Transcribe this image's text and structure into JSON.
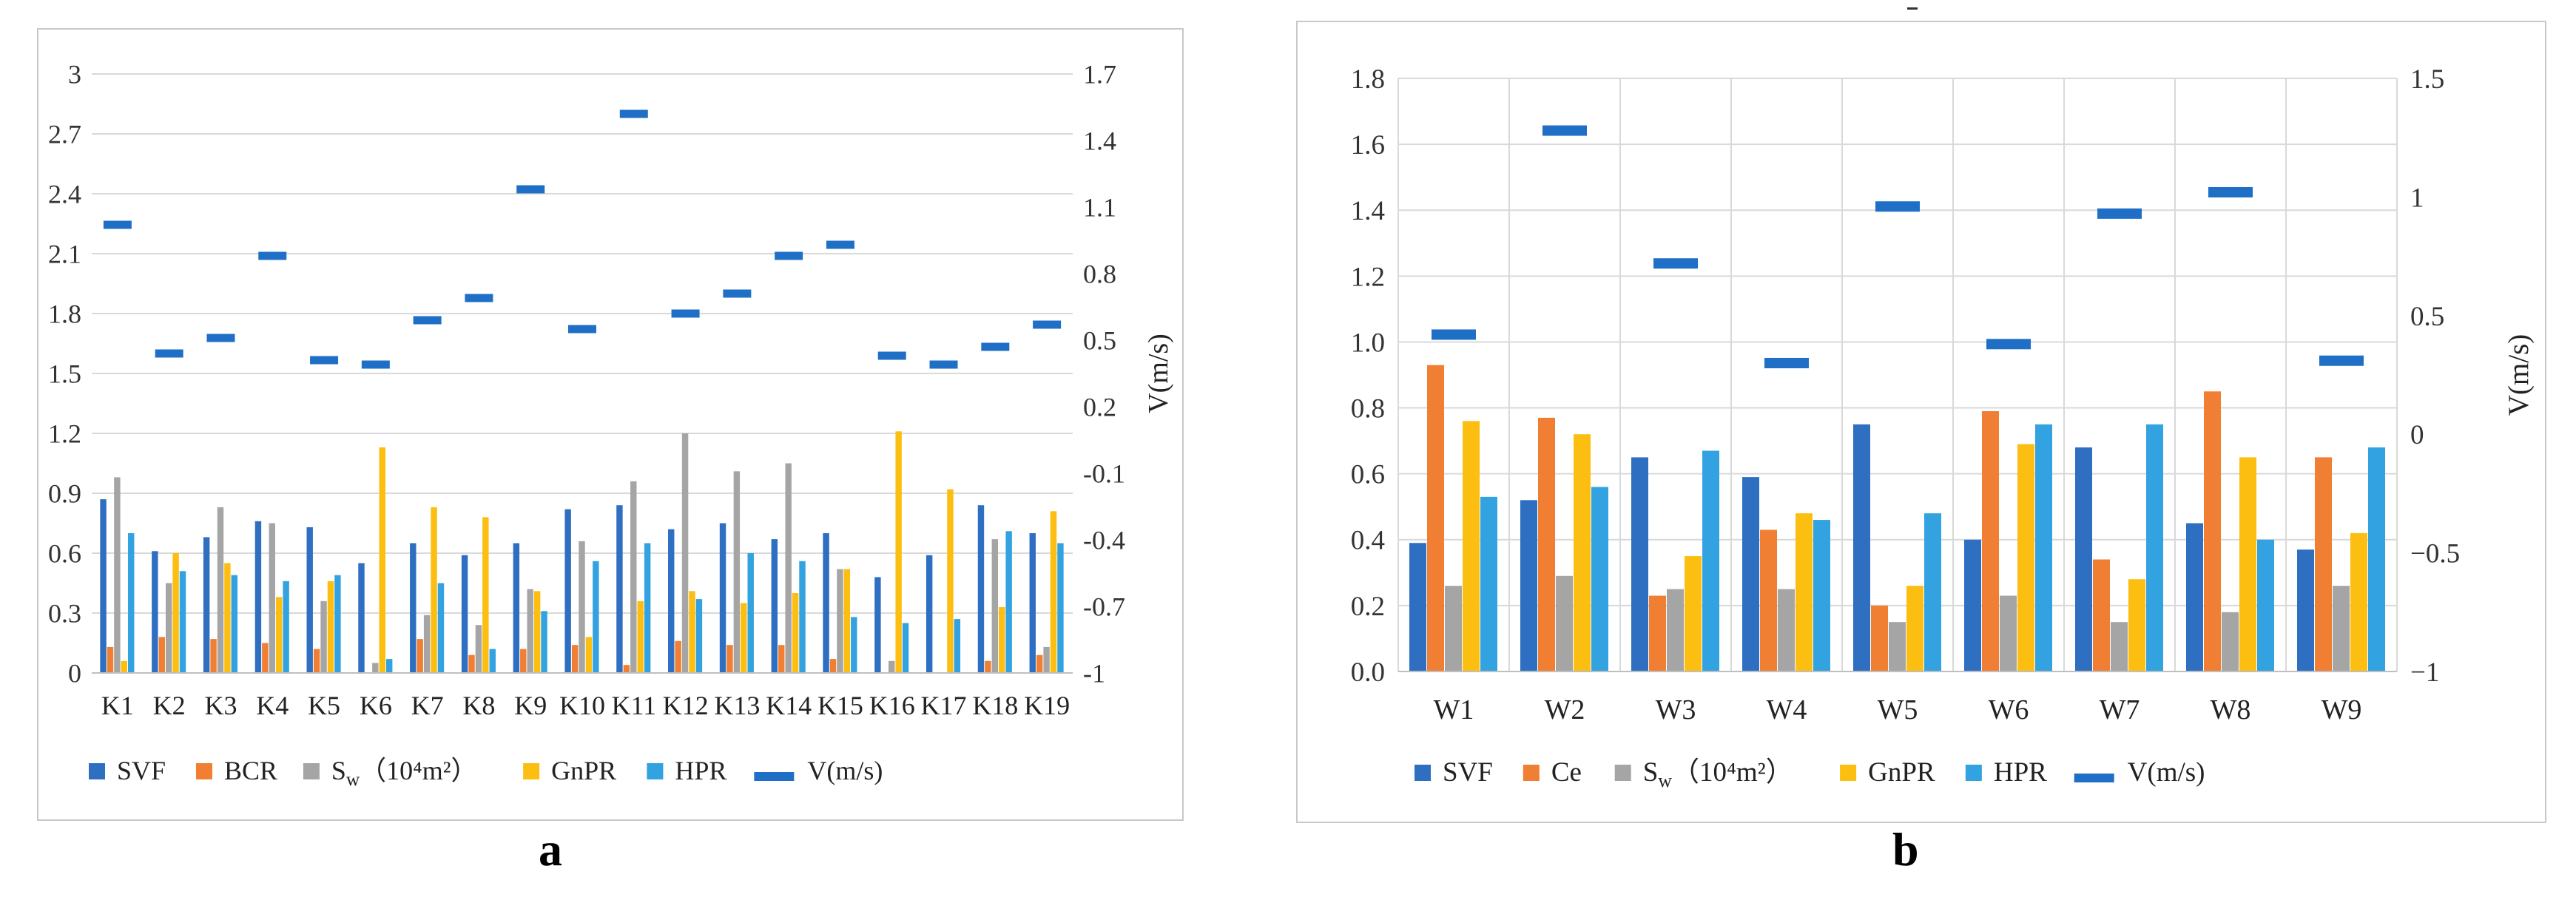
{
  "chart_data": [
    {
      "type": "bar",
      "panel_label": "a",
      "categories": [
        "K1",
        "K2",
        "K3",
        "K4",
        "K5",
        "K6",
        "K7",
        "K8",
        "K9",
        "K10",
        "K11",
        "K12",
        "K13",
        "K14",
        "K15",
        "K16",
        "K17",
        "K18",
        "K19"
      ],
      "y_ticks": [
        "0",
        "0.3",
        "0.6",
        "0.9",
        "1.2",
        "1.5",
        "1.8",
        "2.1",
        "2.4",
        "2.7",
        "3"
      ],
      "y2_ticks": [
        "-1",
        "-0.7",
        "-0.4",
        "-0.1",
        "0.2",
        "0.5",
        "0.8",
        "1.1",
        "1.4",
        "1.7"
      ],
      "ylim": [
        0,
        3
      ],
      "y2lim": [
        -1,
        1.7
      ],
      "y2label": "V(m/s)",
      "series": [
        {
          "name": "SVF",
          "color": "#2e6fc2",
          "values": [
            0.87,
            0.61,
            0.68,
            0.76,
            0.73,
            0.55,
            0.65,
            0.59,
            0.65,
            0.82,
            0.84,
            0.72,
            0.75,
            0.67,
            0.7,
            0.48,
            0.59,
            0.84,
            0.7
          ]
        },
        {
          "name": "BCR",
          "color": "#f07f33",
          "values": [
            0.13,
            0.18,
            0.17,
            0.15,
            0.12,
            0.0,
            0.17,
            0.09,
            0.12,
            0.14,
            0.04,
            0.16,
            0.14,
            0.14,
            0.07,
            0.0,
            0.0,
            0.06,
            0.09
          ]
        },
        {
          "name": "Sw(10⁴m²)",
          "color": "#a5a5a5",
          "values": [
            0.98,
            0.45,
            0.83,
            0.75,
            0.36,
            0.05,
            0.29,
            0.24,
            0.42,
            0.66,
            0.96,
            1.2,
            1.01,
            1.05,
            0.52,
            0.06,
            0.0,
            0.67,
            0.13
          ]
        },
        {
          "name": "GnPR",
          "color": "#fcbe10",
          "values": [
            0.06,
            0.6,
            0.55,
            0.38,
            0.46,
            1.13,
            0.83,
            0.78,
            0.41,
            0.18,
            0.36,
            0.41,
            0.35,
            0.4,
            0.52,
            1.21,
            0.92,
            0.33,
            0.81
          ]
        },
        {
          "name": "HPR",
          "color": "#33a2e0",
          "values": [
            0.7,
            0.51,
            0.49,
            0.46,
            0.49,
            0.07,
            0.45,
            0.12,
            0.31,
            0.56,
            0.65,
            0.37,
            0.6,
            0.56,
            0.28,
            0.25,
            0.27,
            0.71,
            0.65
          ]
        }
      ],
      "line_series": {
        "name": "V(m/s)",
        "color": "#1f6fc6",
        "values": [
          1.02,
          0.44,
          0.51,
          0.88,
          0.41,
          0.39,
          0.59,
          0.69,
          1.18,
          0.55,
          1.52,
          0.62,
          0.71,
          0.88,
          0.93,
          0.43,
          0.39,
          0.47,
          0.57
        ]
      },
      "legend": {
        "position": "bottom",
        "labels": [
          "SVF",
          "BCR",
          "Sw",
          "GnPR",
          "HPR",
          "V(m/s)"
        ],
        "sw_sub": "w",
        "sw_unit": "（10⁴m²）"
      }
    },
    {
      "type": "bar",
      "panel_label": "b",
      "categories": [
        "W1",
        "W2",
        "W3",
        "W4",
        "W5",
        "W6",
        "W7",
        "W8",
        "W9"
      ],
      "y_ticks": [
        "0.0",
        "0.2",
        "0.4",
        "0.6",
        "0.8",
        "1.0",
        "1.2",
        "1.4",
        "1.6",
        "1.8"
      ],
      "y2_ticks": [
        "−1",
        "−0.5",
        "0",
        "0.5",
        "1",
        "1.5"
      ],
      "ylim": [
        0,
        1.8
      ],
      "y2lim": [
        -1,
        1.5
      ],
      "y2label": "V(m/s)",
      "series": [
        {
          "name": "SVF",
          "color": "#2e6fc2",
          "values": [
            0.39,
            0.52,
            0.65,
            0.59,
            0.75,
            0.4,
            0.68,
            0.45,
            0.37
          ]
        },
        {
          "name": "Ce",
          "color": "#f07f33",
          "values": [
            0.93,
            0.77,
            0.23,
            0.43,
            0.2,
            0.79,
            0.34,
            0.85,
            0.65
          ]
        },
        {
          "name": "Sw(10⁴m²)",
          "color": "#a5a5a5",
          "values": [
            0.26,
            0.29,
            0.25,
            0.25,
            0.15,
            0.23,
            0.15,
            0.18,
            0.26
          ]
        },
        {
          "name": "GnPR",
          "color": "#fcbe10",
          "values": [
            0.76,
            0.72,
            0.35,
            0.48,
            0.26,
            0.69,
            0.28,
            0.65,
            0.42
          ]
        },
        {
          "name": "HPR",
          "color": "#33a2e0",
          "values": [
            0.53,
            0.56,
            0.67,
            0.46,
            0.48,
            0.75,
            0.75,
            0.4,
            0.68
          ]
        }
      ],
      "line_series": {
        "name": "V(m/s)",
        "color": "#1f6fc6",
        "values": [
          0.42,
          1.28,
          0.72,
          0.3,
          0.96,
          0.38,
          0.93,
          1.02,
          0.31
        ]
      },
      "legend": {
        "position": "bottom",
        "labels": [
          "SVF",
          "Ce",
          "Sw",
          "GnPR",
          "HPR",
          "V(m/s)"
        ],
        "sw_sub": "w",
        "sw_unit": "（10⁴m²）"
      }
    }
  ]
}
